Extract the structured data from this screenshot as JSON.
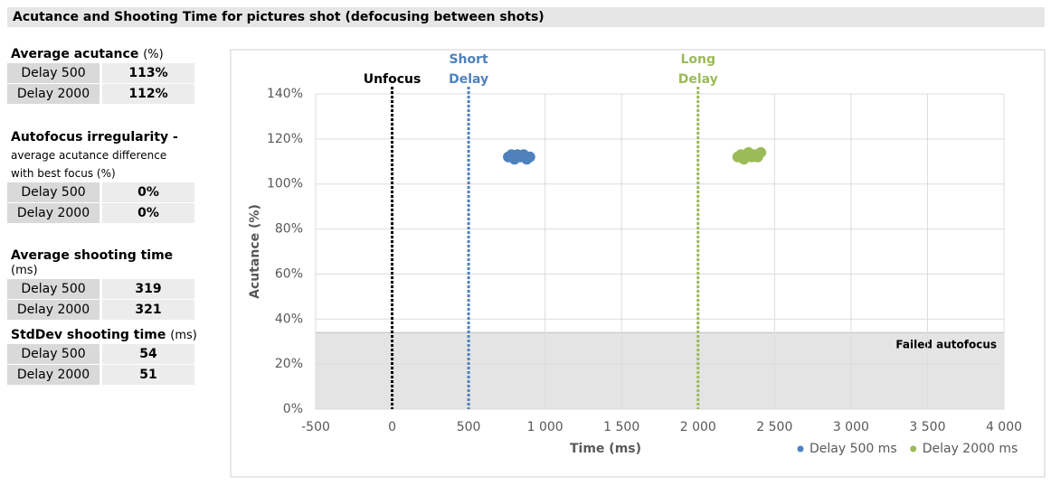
{
  "title": "Acutance and Shooting Time for pictures shot (defocusing between shots)",
  "panel": {
    "sections": [
      {
        "title": "Average acutance",
        "unit": "(%)",
        "rows": [
          {
            "label": "Delay 500",
            "value": "113%"
          },
          {
            "label": "Delay 2000",
            "value": "112%"
          }
        ]
      },
      {
        "title": "Autofocus irregularity -",
        "note": [
          "average acutance difference",
          "with best focus (%)"
        ],
        "rows": [
          {
            "label": "Delay 500",
            "value": "0%"
          },
          {
            "label": "Delay 2000",
            "value": "0%"
          }
        ]
      },
      {
        "title": "Average shooting time",
        "unit": "(ms)",
        "rows": [
          {
            "label": "Delay 500",
            "value": "319"
          },
          {
            "label": "Delay 2000",
            "value": "321"
          }
        ]
      },
      {
        "title": "StdDev shooting time",
        "unit": "(ms)",
        "rows": [
          {
            "label": "Delay 500",
            "value": "54"
          },
          {
            "label": "Delay 2000",
            "value": "51"
          }
        ]
      }
    ]
  },
  "chart_data": {
    "type": "scatter",
    "x_label": "Time (ms)",
    "y_label": "Acutance (%)",
    "xlim": [
      -500,
      4000
    ],
    "xticks": [
      -500,
      0,
      500,
      {
        "value": 1000,
        "label": "1 000"
      },
      {
        "value": 1500,
        "label": "1 500"
      },
      {
        "value": 2000,
        "label": "2 000"
      },
      {
        "value": 2500,
        "label": "2 500"
      },
      {
        "value": 3000,
        "label": "3 000"
      },
      {
        "value": 3500,
        "label": "3 500"
      },
      {
        "value": 4000,
        "label": "4 000"
      }
    ],
    "ylim": [
      0,
      140
    ],
    "yticks": [
      {
        "value": 0,
        "label": "0%"
      },
      {
        "value": 20,
        "label": "20%"
      },
      {
        "value": 40,
        "label": "40%"
      },
      {
        "value": 60,
        "label": "60%"
      },
      {
        "value": 80,
        "label": "80%"
      },
      {
        "value": 100,
        "label": "100%"
      },
      {
        "value": 120,
        "label": "120%"
      },
      {
        "value": 140,
        "label": "140%"
      }
    ],
    "grid": true,
    "legend": "bottom-right",
    "bands": [
      {
        "from": 0,
        "to": 34,
        "label": "Failed autofocus",
        "color": "#e4e4e4"
      }
    ],
    "vlines": [
      {
        "x": 0,
        "lines": [
          "Unfocus"
        ],
        "color": "#000000"
      },
      {
        "x": 500,
        "lines": [
          "Short",
          "Delay"
        ],
        "color": "#4f81bd"
      },
      {
        "x": 2000,
        "lines": [
          "Long",
          "Delay"
        ],
        "color": "#9bbb59"
      }
    ],
    "series": [
      {
        "name": "Delay 500 ms",
        "color": "#4f81bd",
        "x": [
          760,
          780,
          800,
          820,
          840,
          860,
          880,
          900
        ],
        "values": [
          112,
          113,
          111,
          113,
          112,
          113,
          111,
          112
        ]
      },
      {
        "name": "Delay 2000 ms",
        "color": "#9bbb59",
        "x": [
          2260,
          2280,
          2300,
          2330,
          2350,
          2370,
          2390,
          2410
        ],
        "values": [
          112,
          113,
          111,
          114,
          112,
          113,
          112,
          114
        ]
      }
    ]
  }
}
